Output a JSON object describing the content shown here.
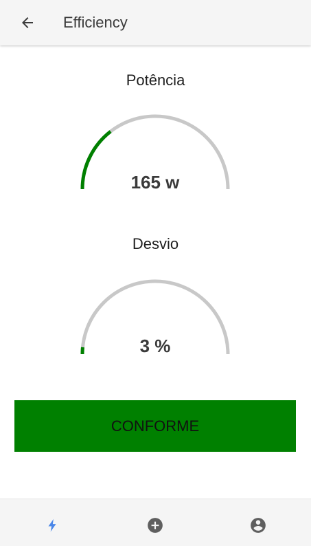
{
  "header": {
    "title": "Efficiency",
    "back_icon": "arrow-left-icon"
  },
  "gauges": [
    {
      "id": "potencia",
      "label": "Potência",
      "value_text": "165 w",
      "fraction": 0.29,
      "color": "#008000",
      "track_color": "#c8c8c8"
    },
    {
      "id": "desvio",
      "label": "Desvio",
      "value_text": "3 %",
      "fraction": 0.03,
      "color": "#008000",
      "track_color": "#c8c8c8"
    }
  ],
  "status": {
    "label": "CONFORME",
    "color": "#008000"
  },
  "bottom_nav": {
    "items": [
      {
        "icon": "lightning-bolt-icon",
        "active": true,
        "color": "#4a86e8"
      },
      {
        "icon": "add-circle-icon",
        "active": false,
        "color": "#5f5f5f"
      },
      {
        "icon": "account-circle-icon",
        "active": false,
        "color": "#5f5f5f"
      }
    ]
  }
}
